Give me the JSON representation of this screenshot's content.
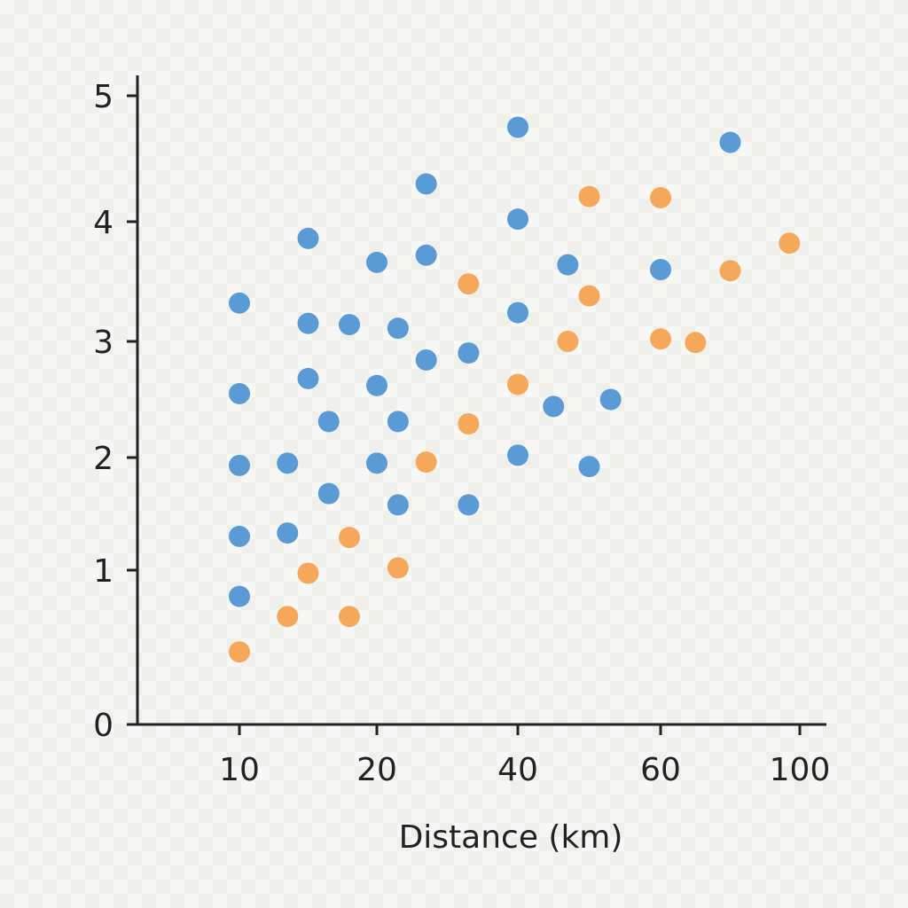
{
  "chart_data": {
    "type": "scatter",
    "title": "",
    "xlabel": "Distance (km)",
    "ylabel": "",
    "x_ticks": [
      {
        "value": 10,
        "label": "10"
      },
      {
        "value": 20,
        "label": "20"
      },
      {
        "value": 40,
        "label": "40"
      },
      {
        "value": 60,
        "label": "60"
      },
      {
        "value": 100,
        "label": "100"
      }
    ],
    "y_ticks": [
      {
        "value": 0,
        "label": "0"
      },
      {
        "value": 1,
        "label": "1"
      },
      {
        "value": 2,
        "label": "2"
      },
      {
        "value": 3,
        "label": "3"
      },
      {
        "value": 4,
        "label": "4"
      },
      {
        "value": 5,
        "label": "5"
      }
    ],
    "ylim": [
      0,
      5
    ],
    "grid": false,
    "legend": false,
    "series": [
      {
        "color": "#5b9bd5",
        "points": [
          [
            10,
            3.32
          ],
          [
            10,
            2.55
          ],
          [
            10,
            1.93
          ],
          [
            10,
            1.3
          ],
          [
            10,
            0.83
          ],
          [
            13.5,
            1.33
          ],
          [
            13.5,
            1.95
          ],
          [
            15,
            3.86
          ],
          [
            15,
            3.15
          ],
          [
            15,
            2.68
          ],
          [
            16.5,
            2.31
          ],
          [
            16.5,
            1.68
          ],
          [
            18,
            3.14
          ],
          [
            20,
            3.66
          ],
          [
            20,
            2.62
          ],
          [
            20,
            1.95
          ],
          [
            23,
            3.11
          ],
          [
            23,
            2.31
          ],
          [
            23,
            1.58
          ],
          [
            27,
            4.3
          ],
          [
            27,
            3.72
          ],
          [
            27,
            2.84
          ],
          [
            33,
            2.9
          ],
          [
            33,
            1.58
          ],
          [
            40,
            4.75
          ],
          [
            40,
            4.02
          ],
          [
            40,
            3.24
          ],
          [
            40,
            2.02
          ],
          [
            45,
            2.44
          ],
          [
            47,
            3.64
          ],
          [
            50,
            1.92
          ],
          [
            53,
            2.5
          ],
          [
            60,
            3.6
          ],
          [
            80,
            4.63
          ]
        ]
      },
      {
        "color": "#f5a85a",
        "points": [
          [
            10,
            0.47
          ],
          [
            13.5,
            0.7
          ],
          [
            15,
            0.98
          ],
          [
            18,
            1.29
          ],
          [
            18,
            0.7
          ],
          [
            23,
            1.02
          ],
          [
            27,
            1.96
          ],
          [
            33,
            3.48
          ],
          [
            33,
            2.29
          ],
          [
            40,
            2.63
          ],
          [
            47,
            3.0
          ],
          [
            50,
            4.2
          ],
          [
            50,
            3.38
          ],
          [
            60,
            4.19
          ],
          [
            60,
            3.02
          ],
          [
            70,
            2.99
          ],
          [
            80,
            3.59
          ],
          [
            97,
            3.82
          ]
        ]
      }
    ]
  }
}
